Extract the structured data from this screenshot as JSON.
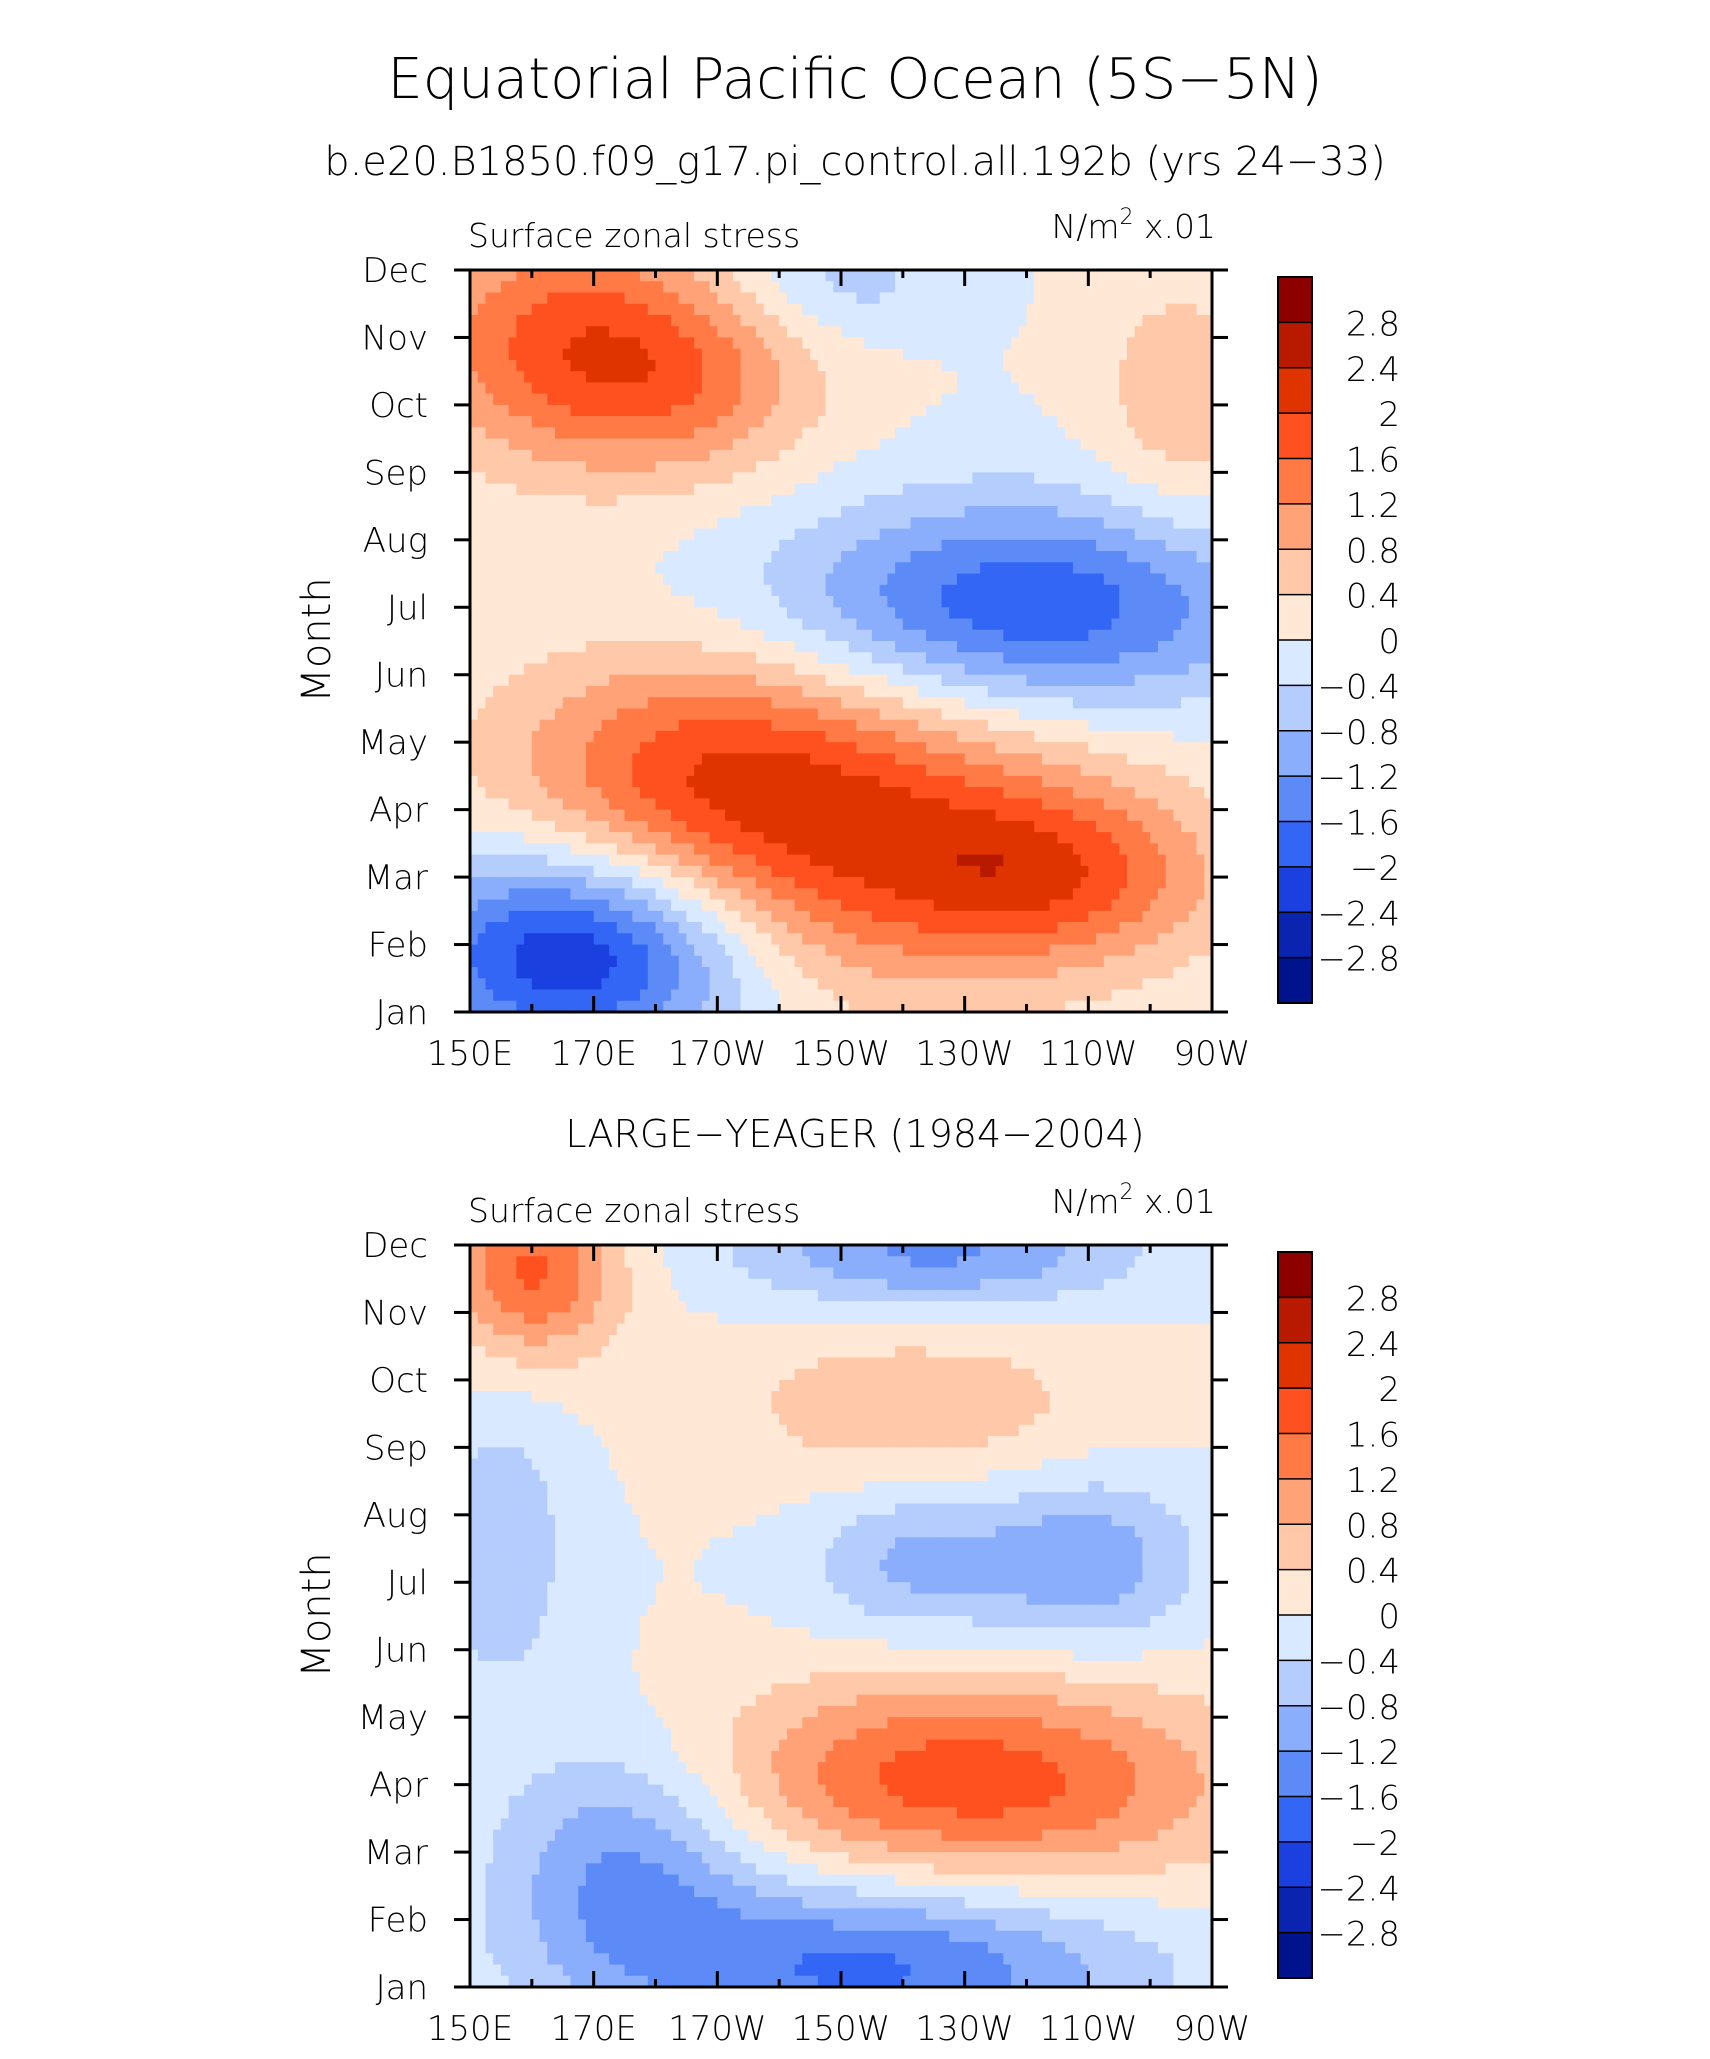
{
  "title": "Equatorial Pacific Ocean (5S−5N)",
  "subtitle": "b.e20.B1850.f09_g17.pi_control.all.192b (yrs 24−33)",
  "colorbar": {
    "labels": [
      "2.8",
      "2.4",
      "2",
      "1.6",
      "1.2",
      "0.8",
      "0.4",
      "0",
      "−0.4",
      "−0.8",
      "−1.2",
      "−1.6",
      "−2",
      "−2.4",
      "−2.8"
    ],
    "colors": [
      "#8c0000",
      "#b81a00",
      "#e03400",
      "#ff5020",
      "#ff7a45",
      "#ffa278",
      "#ffc8a8",
      "#ffe8d6",
      "#d9e9ff",
      "#b4cdfd",
      "#8aaefb",
      "#5c8af7",
      "#3366f5",
      "#1a40e0",
      "#0a24b0",
      "#00138c"
    ]
  },
  "chart_data": [
    {
      "type": "heatmap",
      "panel_title": "",
      "left_label": "Surface zonal stress",
      "right_label_base": "N/m",
      "right_label_exp": "2",
      "right_label_scale": " x.01",
      "ylabel": "Month",
      "x_ticks": [
        "150E",
        "170E",
        "170W",
        "150W",
        "130W",
        "110W",
        "90W"
      ],
      "x_tick_values": [
        150,
        170,
        190,
        210,
        230,
        250,
        270
      ],
      "xlim": [
        150,
        270
      ],
      "y_ticks": [
        "Jan",
        "Feb",
        "Mar",
        "Apr",
        "May",
        "Jun",
        "Jul",
        "Aug",
        "Sep",
        "Oct",
        "Nov",
        "Dec"
      ],
      "ylim": [
        1,
        12
      ],
      "contour_levels": [
        -2.8,
        -2.4,
        -2,
        -1.6,
        -1.2,
        -0.8,
        -0.4,
        0,
        0.4,
        0.8,
        1.2,
        1.6,
        2,
        2.4,
        2.8
      ],
      "field_centers": [
        {
          "lon": 165,
          "month": 11.0,
          "value": 1.6,
          "spread_lon": 18,
          "spread_month": 1.3
        },
        {
          "lon": 185,
          "month": 10.3,
          "value": 1.0,
          "spread_lon": 16,
          "spread_month": 1.0
        },
        {
          "lon": 210,
          "month": 3.6,
          "value": 1.9,
          "spread_lon": 30,
          "spread_month": 1.6
        },
        {
          "lon": 245,
          "month": 3.0,
          "value": 1.3,
          "spread_lon": 18,
          "spread_month": 0.9
        },
        {
          "lon": 185,
          "month": 4.8,
          "value": 1.0,
          "spread_lon": 22,
          "spread_month": 1.2
        },
        {
          "lon": 168,
          "month": 1.9,
          "value": -2.6,
          "spread_lon": 20,
          "spread_month": 1.1
        },
        {
          "lon": 240,
          "month": 7.0,
          "value": -2.0,
          "spread_lon": 28,
          "spread_month": 1.1
        },
        {
          "lon": 210,
          "month": 11.8,
          "value": -0.6,
          "spread_lon": 12,
          "spread_month": 0.6
        },
        {
          "lon": 265,
          "month": 10.0,
          "value": 0.7,
          "spread_lon": 10,
          "spread_month": 1.4
        }
      ]
    },
    {
      "type": "heatmap",
      "panel_title": "LARGE−YEAGER (1984−2004)",
      "left_label": "Surface zonal stress",
      "right_label_base": "N/m",
      "right_label_exp": "2",
      "right_label_scale": " x.01",
      "ylabel": "Month",
      "x_ticks": [
        "150E",
        "170E",
        "170W",
        "150W",
        "130W",
        "110W",
        "90W"
      ],
      "x_tick_values": [
        150,
        170,
        190,
        210,
        230,
        250,
        270
      ],
      "xlim": [
        150,
        270
      ],
      "y_ticks": [
        "Jan",
        "Feb",
        "Mar",
        "Apr",
        "May",
        "Jun",
        "Jul",
        "Aug",
        "Sep",
        "Oct",
        "Nov",
        "Dec"
      ],
      "ylim": [
        1,
        12
      ],
      "contour_levels": [
        -2.8,
        -2.4,
        -2,
        -1.6,
        -1.2,
        -0.8,
        -0.4,
        0,
        0.4,
        0.8,
        1.2,
        1.6,
        2,
        2.4,
        2.8
      ],
      "field_centers": [
        {
          "lon": 160,
          "month": 11.6,
          "value": 1.7,
          "spread_lon": 10,
          "spread_month": 0.9
        },
        {
          "lon": 222,
          "month": 9.6,
          "value": 0.7,
          "spread_lon": 22,
          "spread_month": 0.9
        },
        {
          "lon": 240,
          "month": 4.0,
          "value": 1.4,
          "spread_lon": 26,
          "spread_month": 1.1
        },
        {
          "lon": 215,
          "month": 4.2,
          "value": 0.7,
          "spread_lon": 22,
          "spread_month": 1.0
        },
        {
          "lon": 215,
          "month": 1.3,
          "value": -1.7,
          "spread_lon": 30,
          "spread_month": 0.9
        },
        {
          "lon": 175,
          "month": 2.8,
          "value": -1.2,
          "spread_lon": 14,
          "spread_month": 1.2
        },
        {
          "lon": 225,
          "month": 11.9,
          "value": -1.3,
          "spread_lon": 22,
          "spread_month": 0.6
        },
        {
          "lon": 250,
          "month": 7.3,
          "value": -1.1,
          "spread_lon": 12,
          "spread_month": 0.9
        },
        {
          "lon": 222,
          "month": 7.3,
          "value": -0.9,
          "spread_lon": 12,
          "spread_month": 0.8
        },
        {
          "lon": 155,
          "month": 7.5,
          "value": -0.7,
          "spread_lon": 8,
          "spread_month": 1.6
        }
      ]
    }
  ]
}
